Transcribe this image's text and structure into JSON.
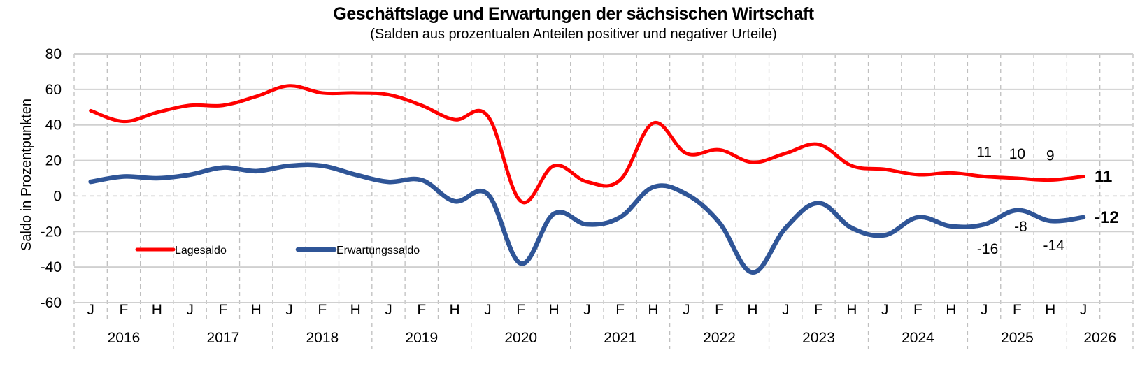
{
  "chart_data": {
    "type": "line",
    "title": "Geschäftslage und Erwartungen der sächsischen Wirtschaft",
    "subtitle": "(Salden aus prozentualen Anteilen positiver und negativer Urteile)",
    "ylabel": "Saldo in Prozentpunkten",
    "xlabel": "",
    "ylim": [
      -60,
      80
    ],
    "yticks": [
      "80",
      "60",
      "40",
      "20",
      "0",
      "-20",
      "-40",
      "-60"
    ],
    "ytick_values": [
      80,
      60,
      40,
      20,
      0,
      -20,
      -40,
      -60
    ],
    "grid": true,
    "legend_position": "lower-left",
    "categories": [
      "J",
      "F",
      "H",
      "J",
      "F",
      "H",
      "J",
      "F",
      "H",
      "J",
      "F",
      "H",
      "J",
      "F",
      "H",
      "J",
      "F",
      "H",
      "J",
      "F",
      "H",
      "J",
      "F",
      "H",
      "J",
      "F",
      "H",
      "J",
      "F",
      "H",
      "J"
    ],
    "years": [
      "2016",
      "2017",
      "2018",
      "2019",
      "2020",
      "2021",
      "2022",
      "2023",
      "2024",
      "2025",
      "2026"
    ],
    "series": [
      {
        "name": "Lagesaldo",
        "color": "#ff0000",
        "values": [
          48,
          42,
          47,
          51,
          51,
          56,
          62,
          58,
          58,
          57,
          51,
          43,
          45,
          -3,
          17,
          8,
          9,
          41,
          24,
          26,
          19,
          24,
          29,
          17,
          15,
          12,
          13,
          11,
          10,
          9,
          11
        ]
      },
      {
        "name": "Erwartungssaldo",
        "color": "#2f5597",
        "values": [
          8,
          11,
          10,
          12,
          16,
          14,
          17,
          17,
          12,
          8,
          9,
          -3,
          1,
          -38,
          -10,
          -16,
          -12,
          5,
          1,
          -15,
          -43,
          -18,
          -4,
          -18,
          -22,
          -12,
          -17,
          -16,
          -8,
          -14,
          -12
        ]
      }
    ],
    "data_labels": {
      "Lagesaldo": [
        {
          "index": 27,
          "text": "11"
        },
        {
          "index": 28,
          "text": "10"
        },
        {
          "index": 29,
          "text": "9"
        },
        {
          "index": 30,
          "text": "11",
          "bold": true
        }
      ],
      "Erwartungssaldo": [
        {
          "index": 27,
          "text": "-16"
        },
        {
          "index": 28,
          "text": "-8"
        },
        {
          "index": 29,
          "text": "-14"
        },
        {
          "index": 30,
          "text": "-12",
          "bold": true
        }
      ]
    }
  }
}
